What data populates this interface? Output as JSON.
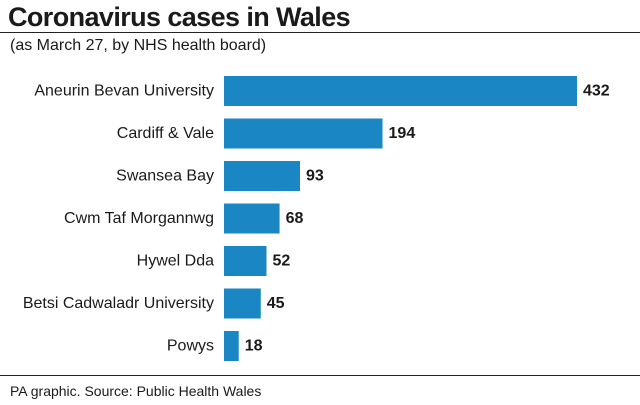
{
  "header": {
    "title": "Coronavirus cases in Wales",
    "subtitle": "(as March 27, by NHS health board)"
  },
  "footer": {
    "source": "PA graphic. Source: Public Health Wales"
  },
  "colors": {
    "bar": "#1b86c4",
    "text": "#1a1a1a",
    "rule": "#222222"
  },
  "chart_data": {
    "type": "bar",
    "orientation": "horizontal",
    "categories": [
      "Aneurin Bevan University",
      "Cardiff & Vale",
      "Swansea Bay",
      "Cwm Taf Morgannwg",
      "Hywel Dda",
      "Betsi Cadwaladr University",
      "Powys"
    ],
    "values": [
      432,
      194,
      93,
      68,
      52,
      45,
      18
    ],
    "data_labels": [
      "432",
      "194",
      "93",
      "68",
      "52",
      "45",
      "18"
    ],
    "xlim": [
      0,
      432
    ],
    "grid": false,
    "legend": "none"
  }
}
